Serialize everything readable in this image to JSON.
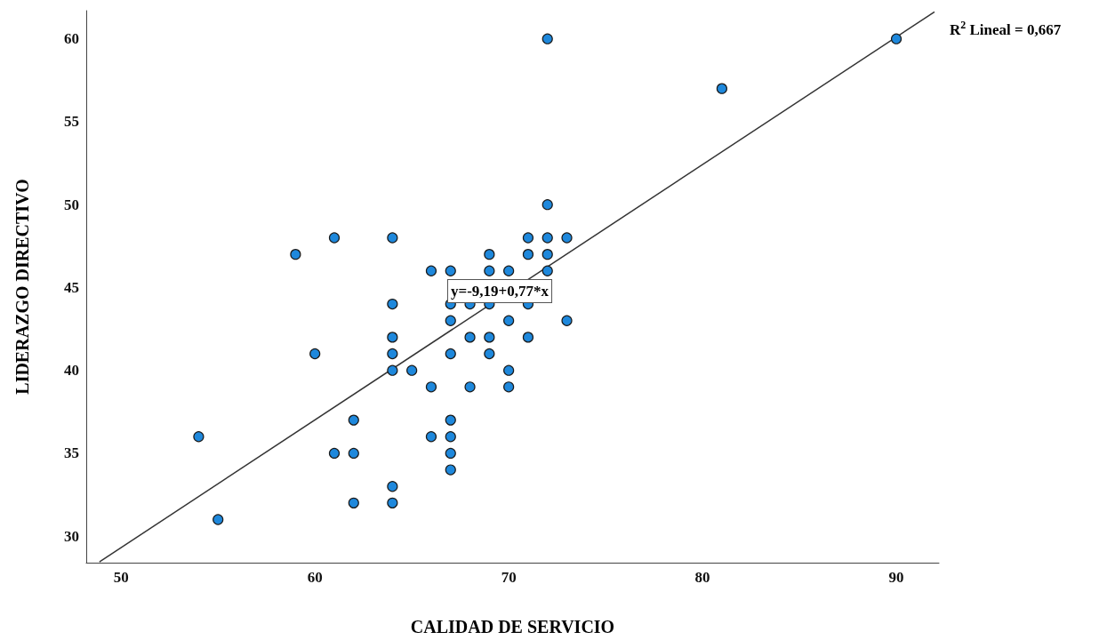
{
  "chart_data": {
    "type": "scatter",
    "xlabel": "CALIDAD DE SERVICIO",
    "ylabel": "LIDERAZGO DIRECTIVO",
    "xlim": [
      48.2,
      92.2
    ],
    "xticks": [
      50,
      60,
      70,
      80,
      90
    ],
    "ylim": [
      28.4,
      61.7
    ],
    "yticks": [
      30,
      35,
      40,
      45,
      50,
      55,
      60
    ],
    "grid": false,
    "marker": "circle",
    "series": [
      {
        "color": "#1e88dc",
        "x": [
          54,
          55,
          59,
          60,
          61,
          61,
          62,
          62,
          62,
          64,
          64,
          64,
          64,
          64,
          64,
          64,
          65,
          66,
          66,
          66,
          67,
          67,
          67,
          67,
          67,
          67,
          67,
          67,
          68,
          68,
          68,
          69,
          69,
          69,
          69,
          69,
          70,
          70,
          70,
          70,
          71,
          71,
          71,
          71,
          72,
          72,
          72,
          72,
          72,
          73,
          73,
          81,
          90
        ],
        "values": [
          36,
          31,
          47,
          41,
          48,
          35,
          37,
          35,
          32,
          48,
          44,
          42,
          41,
          40,
          33,
          32,
          40,
          46,
          39,
          36,
          46,
          44,
          43,
          41,
          37,
          36,
          35,
          34,
          44,
          42,
          39,
          47,
          46,
          44,
          42,
          41,
          46,
          43,
          40,
          39,
          48,
          47,
          44,
          42,
          60,
          50,
          48,
          47,
          46,
          48,
          43,
          57,
          60
        ]
      },
      {
        "type": "line",
        "color": "#333333",
        "line_style": "solid",
        "marker": "none",
        "x": [
          48.88,
          91.97
        ],
        "values": [
          28.45,
          61.63
        ]
      }
    ],
    "annotations": [
      "R$^{2}$ Lineal = 0,667",
      "y=-9,19+0,77*x"
    ]
  }
}
